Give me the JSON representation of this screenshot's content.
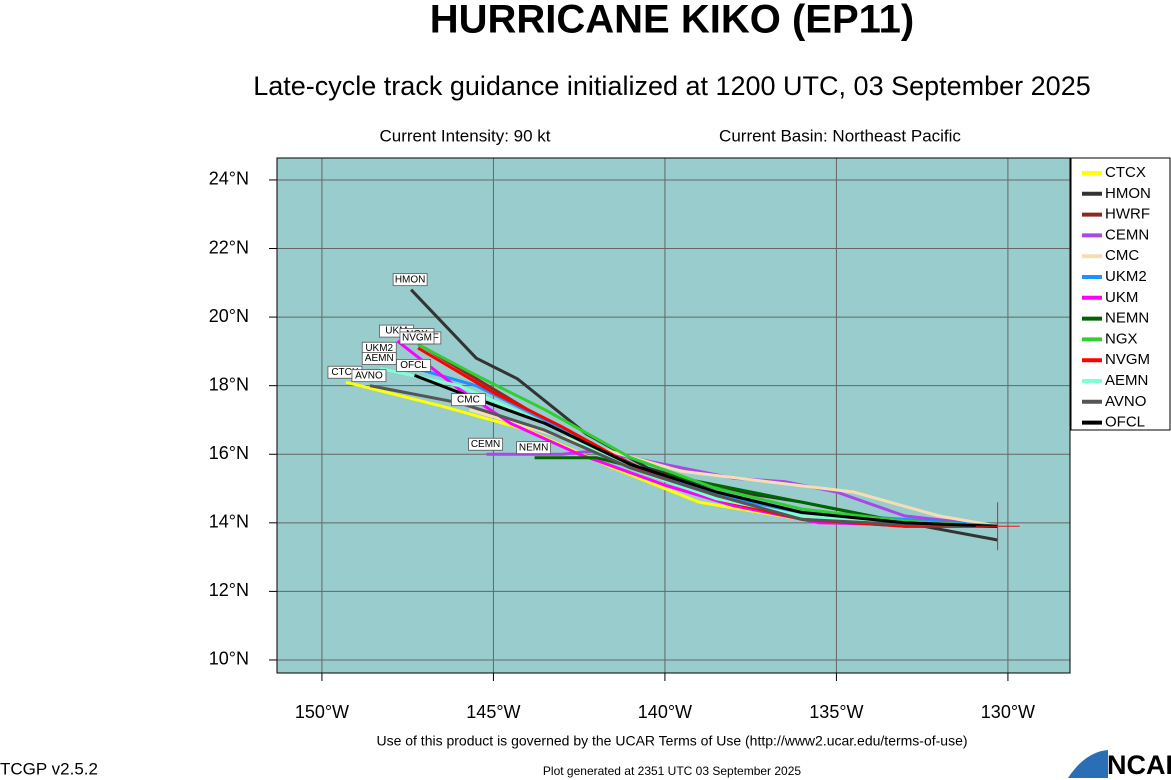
{
  "chart_data": {
    "type": "line",
    "title": "HURRICANE KIKO (EP11)",
    "subtitle": "Late-cycle track guidance initialized at 1200 UTC, 03 September 2025",
    "annotations": [
      "Current Intensity: 90 kt",
      "Current Basin: Northeast Pacific"
    ],
    "xlim": [
      -151.31,
      -128.19
    ],
    "ylim": [
      9.62,
      24.64
    ],
    "xticks": [
      {
        "value": -150,
        "label": "150°W"
      },
      {
        "value": -145,
        "label": "145°W"
      },
      {
        "value": -140,
        "label": "140°W"
      },
      {
        "value": -135,
        "label": "135°W"
      },
      {
        "value": -130,
        "label": "130°W"
      }
    ],
    "yticks": [
      {
        "value": 10,
        "label": "10°N"
      },
      {
        "value": 12,
        "label": "12°N"
      },
      {
        "value": 14,
        "label": "14°N"
      },
      {
        "value": 16,
        "label": "16°N"
      },
      {
        "value": 18,
        "label": "18°N"
      },
      {
        "value": 20,
        "label": "20°N"
      },
      {
        "value": 22,
        "label": "22°N"
      },
      {
        "value": 24,
        "label": "24°N"
      }
    ],
    "grid": true,
    "background": "#99cccc",
    "legend": "right",
    "current_position": {
      "x": -130.3,
      "y": 13.9,
      "color": "#e8191c"
    },
    "series": [
      {
        "name": "CTCX",
        "color": "#ffff00",
        "x": [
          -130.3,
          -133,
          -136,
          -139,
          -141.5,
          -144,
          -146.5,
          -149.3
        ],
        "values": [
          13.9,
          13.95,
          14.1,
          14.6,
          15.6,
          16.7,
          17.4,
          18.1
        ]
      },
      {
        "name": "HMON",
        "color": "#333333",
        "x": [
          -130.3,
          -133,
          -136,
          -138.5,
          -140.5,
          -142.3,
          -144.3,
          -145.5,
          -147.4
        ],
        "values": [
          13.5,
          14.0,
          14.6,
          15.0,
          15.6,
          16.6,
          18.2,
          18.8,
          20.8
        ]
      },
      {
        "name": "HWRF",
        "color": "#8b2a23",
        "x": [
          -130.3,
          -133,
          -136,
          -138.5,
          -140.5,
          -143,
          -145.5,
          -147.0
        ],
        "values": [
          13.9,
          13.9,
          14.1,
          14.8,
          15.5,
          16.7,
          18.2,
          19.1
        ]
      },
      {
        "name": "CEMN",
        "color": "#a848e8",
        "x": [
          -130.3,
          -133,
          -135,
          -136.5,
          -138,
          -140,
          -142,
          -143,
          -145.2
        ],
        "values": [
          13.9,
          14.2,
          14.9,
          15.2,
          15.3,
          15.7,
          16.1,
          16.0,
          16.0
        ]
      },
      {
        "name": "CMC",
        "color": "#f5deb3",
        "x": [
          -130.3,
          -132,
          -134.5,
          -137,
          -139.5,
          -142,
          -144,
          -145.7
        ],
        "values": [
          13.9,
          14.2,
          14.9,
          15.2,
          15.5,
          16.2,
          16.8,
          17.3
        ]
      },
      {
        "name": "UKM2",
        "color": "#1e90ff",
        "x": [
          -130.3,
          -133,
          -136,
          -138.5,
          -141,
          -143.5,
          -145.5,
          -148.3
        ],
        "values": [
          13.9,
          14.1,
          14.3,
          14.8,
          15.7,
          17.0,
          18.0,
          18.8
        ]
      },
      {
        "name": "UKM",
        "color": "#ff00ff",
        "x": [
          -130.3,
          -133,
          -135.5,
          -138,
          -140,
          -142.5,
          -144.5,
          -146,
          -147.8
        ],
        "values": [
          13.9,
          13.95,
          14.0,
          14.5,
          15.1,
          16.0,
          16.9,
          17.9,
          19.3
        ]
      },
      {
        "name": "NEMN",
        "color": "#006400",
        "x": [
          -130.3,
          -133,
          -135.5,
          -137.5,
          -140,
          -142,
          -143.8
        ],
        "values": [
          13.9,
          14.0,
          14.5,
          14.9,
          15.4,
          15.9,
          15.9
        ]
      },
      {
        "name": "NGX",
        "color": "#32cd32",
        "x": [
          -130.3,
          -133,
          -136,
          -138.5,
          -141,
          -143.5,
          -145.5,
          -147.2
        ],
        "values": [
          13.9,
          14.05,
          14.4,
          15.0,
          15.9,
          17.3,
          18.3,
          19.2
        ]
      },
      {
        "name": "NVGM",
        "color": "#ff0000",
        "x": [
          -130.3,
          -133,
          -136,
          -138.5,
          -141,
          -143,
          -145,
          -147.2
        ],
        "values": [
          13.9,
          13.9,
          14.1,
          14.7,
          15.7,
          16.8,
          17.8,
          19.1
        ]
      },
      {
        "name": "AEMN",
        "color": "#7fffd4",
        "x": [
          -130.3,
          -133,
          -136,
          -138.5,
          -141,
          -143.5,
          -146,
          -148.3
        ],
        "values": [
          13.9,
          14.0,
          14.2,
          14.7,
          15.6,
          16.9,
          18.0,
          18.5
        ]
      },
      {
        "name": "AVNO",
        "color": "#555555",
        "x": [
          -130.3,
          -133,
          -136,
          -138.5,
          -141,
          -143.5,
          -146,
          -148.6
        ],
        "values": [
          13.9,
          13.95,
          14.1,
          14.8,
          15.6,
          16.7,
          17.5,
          18.0
        ]
      },
      {
        "name": "OFCL",
        "color": "#000000",
        "x": [
          -130.3,
          -133,
          -136,
          -138.5,
          -141,
          -143.5,
          -146,
          -147.3
        ],
        "values": [
          13.9,
          14.0,
          14.3,
          14.9,
          15.7,
          16.9,
          17.8,
          18.3
        ]
      }
    ]
  },
  "footer": {
    "terms": "Use of this product is governed by the UCAR Terms of Use (http://www2.ucar.edu/terms-of-use)",
    "version": "TCGP v2.5.2",
    "generated": "Plot generated at 2351 UTC   03 September 2025",
    "logo": "NCAR"
  }
}
